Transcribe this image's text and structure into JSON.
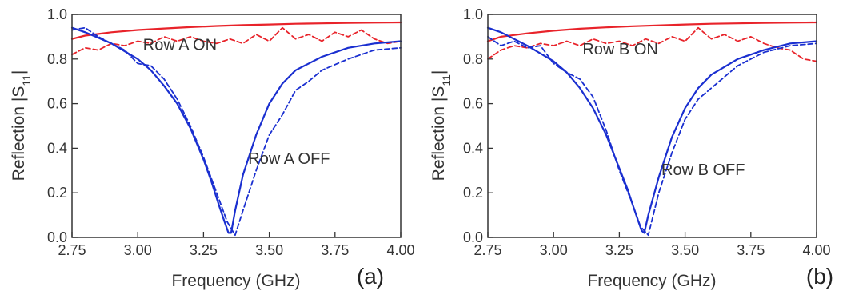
{
  "colors": {
    "on_curve": "#e8232a",
    "off_curve": "#1a2fd0",
    "axis": "#333333"
  },
  "chart_data": [
    {
      "type": "line",
      "panel_label": "(a)",
      "xlabel": "Frequency (GHz)",
      "ylabel": "Reflection |S",
      "ylabel_sub": "11",
      "ylabel_end": "|",
      "xlim": [
        2.75,
        4.0
      ],
      "ylim": [
        0.0,
        1.0
      ],
      "xticks": [
        2.75,
        3.0,
        3.25,
        3.5,
        3.75,
        4.0
      ],
      "xtick_labels": [
        "2.75",
        "3.00",
        "3.25",
        "3.50",
        "3.75",
        "4.00"
      ],
      "yticks": [
        0.0,
        0.2,
        0.4,
        0.6,
        0.8,
        1.0
      ],
      "ytick_labels": [
        "0.0",
        "0.2",
        "0.4",
        "0.6",
        "0.8",
        "1.0"
      ],
      "annotations": [
        {
          "text": "Row A ON",
          "x": 3.02,
          "y": 0.84
        },
        {
          "text": "Row A OFF",
          "x": 3.42,
          "y": 0.33
        }
      ],
      "series": [
        {
          "color": "#e8232a",
          "dash": "solid",
          "x": [
            2.75,
            2.8,
            2.9,
            3.0,
            3.1,
            3.2,
            3.3,
            3.4,
            3.5,
            3.6,
            3.7,
            3.8,
            3.9,
            4.0
          ],
          "y": [
            0.89,
            0.905,
            0.92,
            0.93,
            0.937,
            0.943,
            0.948,
            0.952,
            0.955,
            0.958,
            0.96,
            0.962,
            0.963,
            0.964
          ]
        },
        {
          "color": "#e8232a",
          "dash": "dashed",
          "x": [
            2.75,
            2.8,
            2.85,
            2.9,
            2.95,
            3.0,
            3.05,
            3.1,
            3.15,
            3.2,
            3.25,
            3.3,
            3.35,
            3.4,
            3.45,
            3.5,
            3.55,
            3.6,
            3.65,
            3.7,
            3.75,
            3.8,
            3.85,
            3.9,
            3.95,
            4.0
          ],
          "y": [
            0.82,
            0.85,
            0.84,
            0.87,
            0.86,
            0.88,
            0.87,
            0.9,
            0.88,
            0.9,
            0.88,
            0.87,
            0.89,
            0.87,
            0.91,
            0.88,
            0.94,
            0.89,
            0.91,
            0.88,
            0.92,
            0.9,
            0.93,
            0.89,
            0.87,
            0.88
          ]
        },
        {
          "color": "#1a2fd0",
          "dash": "solid",
          "x": [
            2.75,
            2.8,
            2.9,
            3.0,
            3.05,
            3.1,
            3.15,
            3.2,
            3.25,
            3.28,
            3.31,
            3.33,
            3.345,
            3.355,
            3.37,
            3.4,
            3.45,
            3.5,
            3.55,
            3.6,
            3.7,
            3.8,
            3.9,
            4.0
          ],
          "y": [
            0.94,
            0.92,
            0.87,
            0.8,
            0.75,
            0.68,
            0.6,
            0.49,
            0.35,
            0.25,
            0.14,
            0.07,
            0.02,
            0.02,
            0.12,
            0.28,
            0.46,
            0.6,
            0.69,
            0.75,
            0.81,
            0.85,
            0.87,
            0.88
          ]
        },
        {
          "color": "#1a2fd0",
          "dash": "dashed",
          "x": [
            2.75,
            2.8,
            2.85,
            2.9,
            2.95,
            3.0,
            3.05,
            3.1,
            3.15,
            3.2,
            3.25,
            3.3,
            3.34,
            3.37,
            3.4,
            3.45,
            3.5,
            3.55,
            3.6,
            3.65,
            3.7,
            3.8,
            3.9,
            4.0
          ],
          "y": [
            0.93,
            0.94,
            0.9,
            0.87,
            0.84,
            0.78,
            0.77,
            0.71,
            0.62,
            0.5,
            0.36,
            0.2,
            0.07,
            0.01,
            0.12,
            0.3,
            0.46,
            0.55,
            0.66,
            0.7,
            0.75,
            0.8,
            0.84,
            0.85
          ]
        }
      ]
    },
    {
      "type": "line",
      "panel_label": "(b)",
      "xlabel": "Frequency (GHz)",
      "ylabel": "Reflection |S",
      "ylabel_sub": "11",
      "ylabel_end": "|",
      "xlim": [
        2.75,
        4.0
      ],
      "ylim": [
        0.0,
        1.0
      ],
      "xticks": [
        2.75,
        3.0,
        3.25,
        3.5,
        3.75,
        4.0
      ],
      "xtick_labels": [
        "2.75",
        "3.00",
        "3.25",
        "3.50",
        "3.75",
        "4.00"
      ],
      "yticks": [
        0.0,
        0.2,
        0.4,
        0.6,
        0.8,
        1.0
      ],
      "ytick_labels": [
        "0.0",
        "0.2",
        "0.4",
        "0.6",
        "0.8",
        "1.0"
      ],
      "annotations": [
        {
          "text": "Row B ON",
          "x": 3.11,
          "y": 0.82
        },
        {
          "text": "Row B OFF",
          "x": 3.41,
          "y": 0.28
        }
      ],
      "series": [
        {
          "color": "#e8232a",
          "dash": "solid",
          "x": [
            2.75,
            2.8,
            2.9,
            3.0,
            3.1,
            3.2,
            3.3,
            3.4,
            3.5,
            3.6,
            3.7,
            3.8,
            3.9,
            4.0
          ],
          "y": [
            0.88,
            0.9,
            0.915,
            0.927,
            0.936,
            0.942,
            0.947,
            0.951,
            0.955,
            0.958,
            0.96,
            0.962,
            0.963,
            0.964
          ]
        },
        {
          "color": "#e8232a",
          "dash": "dashed",
          "x": [
            2.75,
            2.8,
            2.85,
            2.9,
            2.95,
            3.0,
            3.05,
            3.1,
            3.15,
            3.2,
            3.25,
            3.3,
            3.35,
            3.4,
            3.45,
            3.5,
            3.55,
            3.6,
            3.65,
            3.7,
            3.75,
            3.8,
            3.85,
            3.9,
            3.95,
            4.0
          ],
          "y": [
            0.8,
            0.84,
            0.86,
            0.85,
            0.87,
            0.86,
            0.88,
            0.86,
            0.89,
            0.87,
            0.88,
            0.86,
            0.89,
            0.87,
            0.9,
            0.88,
            0.94,
            0.89,
            0.91,
            0.88,
            0.9,
            0.87,
            0.85,
            0.84,
            0.8,
            0.79
          ]
        },
        {
          "color": "#1a2fd0",
          "dash": "solid",
          "x": [
            2.75,
            2.8,
            2.9,
            3.0,
            3.05,
            3.1,
            3.15,
            3.2,
            3.25,
            3.28,
            3.3,
            3.32,
            3.335,
            3.345,
            3.36,
            3.4,
            3.45,
            3.5,
            3.55,
            3.6,
            3.7,
            3.8,
            3.9,
            4.0
          ],
          "y": [
            0.94,
            0.92,
            0.86,
            0.79,
            0.74,
            0.67,
            0.58,
            0.46,
            0.31,
            0.22,
            0.15,
            0.08,
            0.03,
            0.02,
            0.1,
            0.27,
            0.45,
            0.58,
            0.67,
            0.73,
            0.8,
            0.84,
            0.87,
            0.88
          ]
        },
        {
          "color": "#1a2fd0",
          "dash": "dashed",
          "x": [
            2.75,
            2.8,
            2.85,
            2.9,
            2.95,
            3.0,
            3.05,
            3.1,
            3.15,
            3.2,
            3.25,
            3.3,
            3.33,
            3.36,
            3.4,
            3.45,
            3.5,
            3.55,
            3.6,
            3.65,
            3.7,
            3.8,
            3.9,
            4.0
          ],
          "y": [
            0.9,
            0.86,
            0.88,
            0.85,
            0.86,
            0.78,
            0.74,
            0.71,
            0.63,
            0.48,
            0.3,
            0.15,
            0.05,
            0.01,
            0.2,
            0.38,
            0.53,
            0.62,
            0.67,
            0.72,
            0.77,
            0.83,
            0.86,
            0.87
          ]
        }
      ]
    }
  ]
}
